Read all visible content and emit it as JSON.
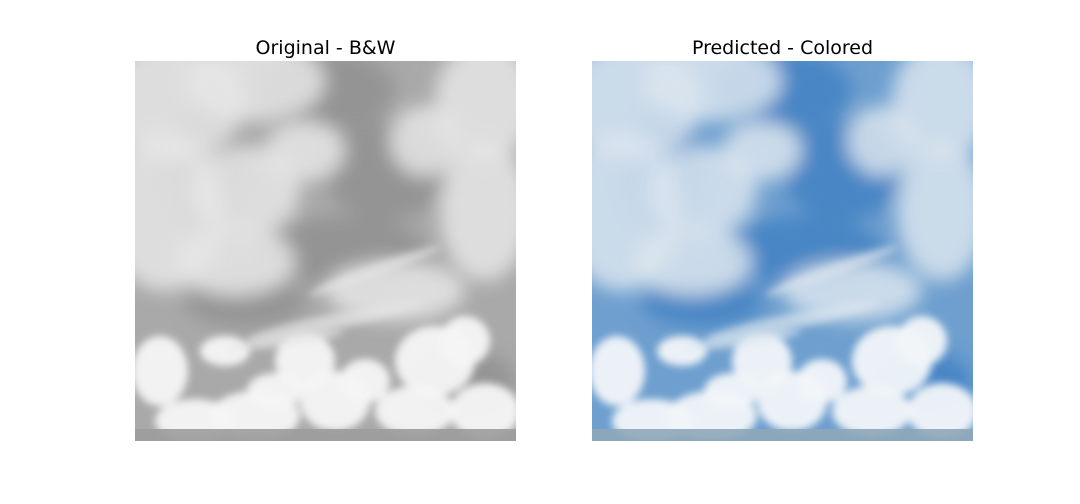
{
  "figure": {
    "panels": [
      {
        "title": "Original - B&W",
        "image": "grayscale-cloudy-sky-photo",
        "palette": {
          "sky": "#a9a9a9",
          "sky_dark": "#8e8e8e",
          "cloud": "#e6e6e6",
          "cloud_bright": "#f6f6f6",
          "horizon": "#9c9c9c"
        }
      },
      {
        "title": "Predicted - Colored",
        "image": "colorized-cloudy-sky-photo",
        "palette": {
          "sky": "#6e9fcf",
          "sky_dark": "#3f7fc2",
          "cloud": "#dbe5ee",
          "cloud_bright": "#f2f6f9",
          "horizon": "#8ea7b8"
        }
      }
    ]
  }
}
